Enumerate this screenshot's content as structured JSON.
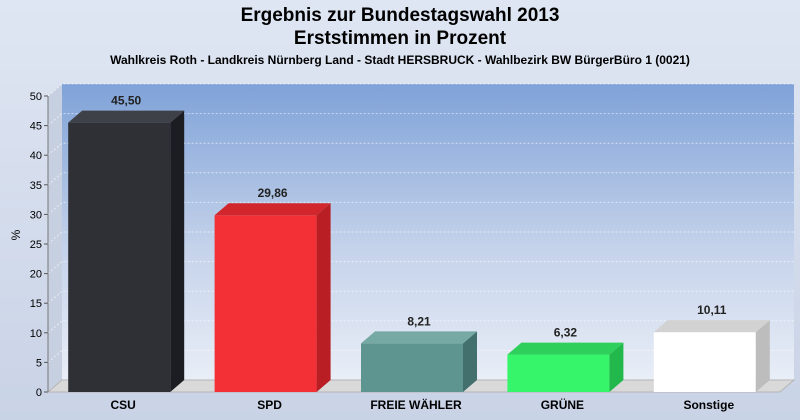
{
  "chart_data": {
    "type": "bar",
    "title": "Ergebnis zur Bundestagswahl 2013",
    "subtitle": "Erststimmen in Prozent",
    "subtitle2": "Wahlkreis Roth - Landkreis Nürnberg Land - Stadt HERSBRUCK - Wahlbezirk BW BürgerBüro 1 (0021)",
    "ylabel": "%",
    "ylim": [
      0,
      50
    ],
    "yticks": [
      0,
      5,
      10,
      15,
      20,
      25,
      30,
      35,
      40,
      45,
      50
    ],
    "grid": true,
    "categories": [
      "CSU",
      "SPD",
      "FREIE WÄHLER",
      "GRÜNE",
      "Sonstige"
    ],
    "values": [
      45.5,
      29.86,
      8.21,
      6.32,
      10.11
    ],
    "value_labels": [
      "45,50",
      "29,86",
      "8,21",
      "6,32",
      "10,11"
    ],
    "colors": [
      "#2e3036",
      "#f23036",
      "#5f9591",
      "#36f56a",
      "#ffffff"
    ],
    "side_colors": [
      "#1c1d22",
      "#b81e24",
      "#43706d",
      "#22b84b",
      "#bdbdbd"
    ],
    "top_colors": [
      "#3f4149",
      "#d0262c",
      "#76a8a4",
      "#2ecf5a",
      "#d2d2d2"
    ]
  }
}
